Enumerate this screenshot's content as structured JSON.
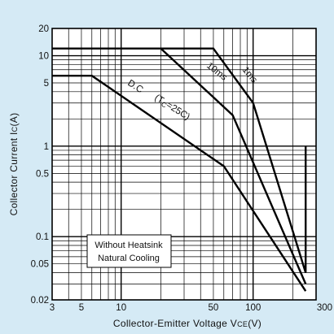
{
  "chart_data": {
    "type": "line",
    "title": "",
    "xlabel": "Collector-Emitter Voltage VCE(V)",
    "xlabel_parts": [
      "Collector-Emitter Voltage V",
      "CE",
      "(V)"
    ],
    "ylabel": "Collector Current IC(A)",
    "ylabel_parts": [
      "Collector Current I",
      "C",
      "(A)"
    ],
    "x_scale": "log",
    "y_scale": "log",
    "xlim": [
      3,
      300
    ],
    "ylim": [
      0.02,
      20
    ],
    "x_ticks": [
      {
        "value": 3,
        "label": "3"
      },
      {
        "value": 5,
        "label": "5"
      },
      {
        "value": 10,
        "label": "10"
      },
      {
        "value": 50,
        "label": "50"
      },
      {
        "value": 100,
        "label": "100"
      },
      {
        "value": 300,
        "label": "300"
      }
    ],
    "y_ticks": [
      {
        "value": 0.02,
        "label": "0.02"
      },
      {
        "value": 0.05,
        "label": "0.05"
      },
      {
        "value": 0.1,
        "label": "0.1"
      },
      {
        "value": 0.5,
        "label": "0.5"
      },
      {
        "value": 1,
        "label": "1"
      },
      {
        "value": 5,
        "label": "5"
      },
      {
        "value": 10,
        "label": "10"
      },
      {
        "value": 20,
        "label": "20"
      }
    ],
    "grid": true,
    "series": [
      {
        "key": "1ms",
        "label": "1ms",
        "points": [
          [
            3,
            12
          ],
          [
            50,
            12
          ],
          [
            100,
            3
          ],
          [
            250,
            0.04
          ],
          [
            250,
            1
          ]
        ]
      },
      {
        "key": "10ms",
        "label": "10ms",
        "points": [
          [
            20,
            12
          ],
          [
            70,
            2.2
          ],
          [
            250,
            0.03
          ]
        ]
      },
      {
        "key": "dc",
        "points": [
          [
            3,
            6
          ],
          [
            6,
            6
          ],
          [
            60,
            0.6
          ],
          [
            250,
            0.025
          ]
        ]
      }
    ],
    "annotations": {
      "dc_label": "D.C",
      "dc_condition": "(TC=25C)",
      "dc_condition_parts": [
        "(T",
        "C",
        "=25C)"
      ],
      "note_lines": [
        "Without Heatsink",
        "Natural Cooling"
      ]
    }
  }
}
